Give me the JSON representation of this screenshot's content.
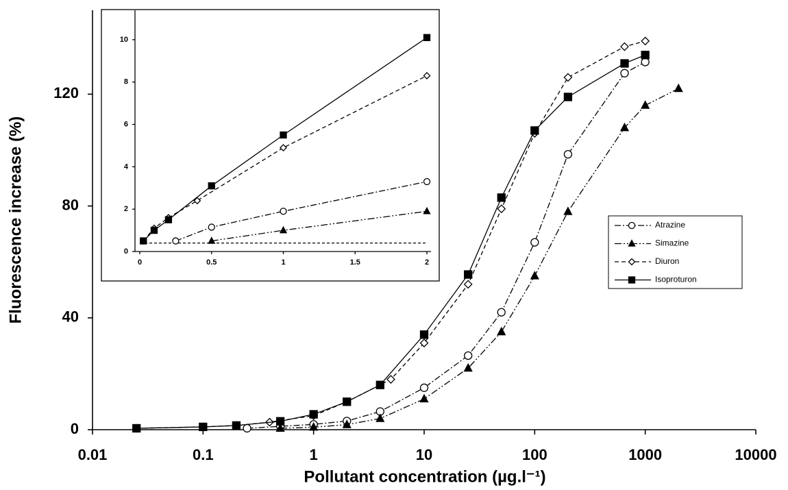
{
  "chart_data": [
    {
      "type": "line",
      "x_label": "Pollutant concentration (µg.l⁻¹)",
      "y_label": "Fluorescence increase (%)",
      "xscale": "log",
      "xlim": [
        0.01,
        10000
      ],
      "xticks": [
        0.01,
        0.1,
        1,
        10,
        100,
        1000,
        10000
      ],
      "ylim": [
        0,
        150
      ],
      "yticks": [
        0,
        40,
        80,
        120
      ],
      "legend": "right",
      "series": [
        {
          "name": "Atrazine",
          "color": "#000000",
          "marker": "circle-open",
          "dash": "9 3 2 3",
          "x": [
            0.25,
            0.5,
            1,
            2,
            4,
            10,
            25,
            50,
            100,
            200,
            650,
            1000
          ],
          "values": [
            0.5,
            1.2,
            1.9,
            3.1,
            6.5,
            15,
            26.5,
            42,
            67,
            98.5,
            127.5,
            131.5
          ]
        },
        {
          "name": "Simazine",
          "color": "#000000",
          "marker": "triangle-filled",
          "dash": "10 3 2 3 2 3",
          "x": [
            0.5,
            1,
            2,
            4,
            10,
            25,
            50,
            100,
            200,
            650,
            1000,
            2000
          ],
          "values": [
            0.5,
            0.9,
            1.8,
            4,
            11,
            22,
            35,
            55,
            78,
            108,
            116,
            122
          ]
        },
        {
          "name": "Diuron",
          "color": "#000000",
          "marker": "diamond-open",
          "dash": "6 4",
          "x": [
            0.025,
            0.1,
            0.2,
            0.4,
            1,
            2,
            5,
            10,
            25,
            50,
            100,
            200,
            650,
            1000
          ],
          "values": [
            0.5,
            1,
            1.5,
            2.7,
            5,
            10,
            18,
            31,
            52,
            79,
            106,
            126,
            137,
            139
          ]
        },
        {
          "name": "Isoproturon",
          "color": "#000000",
          "marker": "square-filled",
          "dash": "none",
          "x": [
            0.025,
            0.1,
            0.2,
            0.5,
            1,
            2,
            4,
            10,
            25,
            50,
            100,
            200,
            650,
            1000
          ],
          "values": [
            0.5,
            1,
            1.5,
            3,
            5.5,
            10,
            16,
            34,
            55.5,
            83,
            107,
            119,
            131,
            134
          ]
        }
      ]
    },
    {
      "type": "line",
      "xscale": "linear",
      "xlim": [
        0,
        2
      ],
      "xticks": [
        0,
        0.5,
        1,
        1.5,
        2
      ],
      "ylim": [
        0,
        11
      ],
      "yticks": [
        0,
        2,
        4,
        6,
        8,
        10
      ],
      "reference_line": 0.4,
      "series": [
        {
          "color": "#000000",
          "marker": "circle-open",
          "dash": "9 3 2 3",
          "x": [
            0.25,
            0.5,
            1,
            2
          ],
          "values": [
            0.5,
            1.15,
            1.9,
            3.3
          ]
        },
        {
          "color": "#000000",
          "marker": "triangle-filled",
          "dash": "10 3 2 3 2 3",
          "x": [
            0.5,
            1,
            2
          ],
          "values": [
            0.5,
            1.0,
            1.9
          ]
        },
        {
          "color": "#000000",
          "marker": "diamond-open",
          "dash": "6 4",
          "x": [
            0.025,
            0.1,
            0.2,
            0.4,
            1,
            2
          ],
          "values": [
            0.5,
            1.1,
            1.6,
            2.4,
            4.9,
            8.3
          ]
        },
        {
          "color": "#000000",
          "marker": "square-filled",
          "dash": "none",
          "x": [
            0.025,
            0.1,
            0.2,
            0.5,
            1,
            2
          ],
          "values": [
            0.5,
            1.0,
            1.5,
            3.1,
            5.5,
            10.1
          ]
        }
      ]
    }
  ]
}
